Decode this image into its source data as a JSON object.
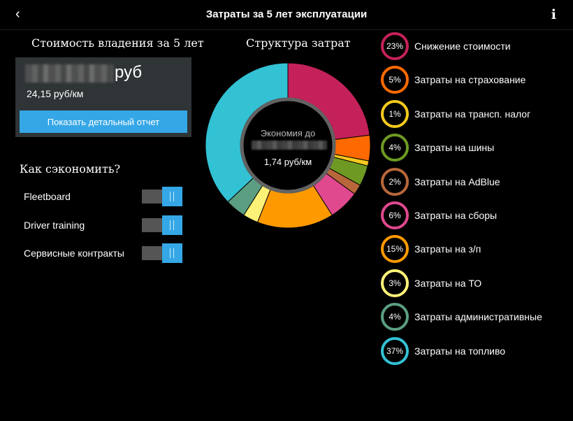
{
  "header": {
    "title": "Затраты за 5 лет эксплуатации",
    "back_icon": "‹",
    "info_icon": "i"
  },
  "ownership": {
    "heading": "Стоимость владения за 5 лет",
    "total_unit": "руб",
    "per_km": "24,15 руб/км",
    "report_button": "Показать детальный отчет"
  },
  "savings": {
    "heading": "Как сэкономить?",
    "toggles": [
      {
        "label": "Fleetboard",
        "on": true
      },
      {
        "label": "Driver training",
        "on": true
      },
      {
        "label": "Сервисные контракты",
        "on": true
      }
    ]
  },
  "structure": {
    "heading": "Структура затрат",
    "center_top": "Экономия до",
    "center_bottom": "1,74 руб/км"
  },
  "chart_data": {
    "type": "pie",
    "categories": [
      "Снижение стоимости",
      "Затраты на страхование",
      "Затраты на трансп. налог",
      "Затраты на шины",
      "Затраты на AdBlue",
      "Затраты на сборы",
      "Затраты на з/п",
      "Затраты на ТО",
      "Затраты административные",
      "Затраты на топливо"
    ],
    "values": [
      23,
      5,
      1,
      4,
      2,
      6,
      15,
      3,
      4,
      37
    ],
    "labels": [
      "23%",
      "5%",
      "1%",
      "4%",
      "2%",
      "6%",
      "15%",
      "3%",
      "4%",
      "37%"
    ],
    "colors": [
      "#c4215a",
      "#ff6a00",
      "#f5c91d",
      "#6e9a23",
      "#b8673a",
      "#e0498e",
      "#ff9900",
      "#fcf277",
      "#5b9e81",
      "#33c1d4"
    ]
  }
}
